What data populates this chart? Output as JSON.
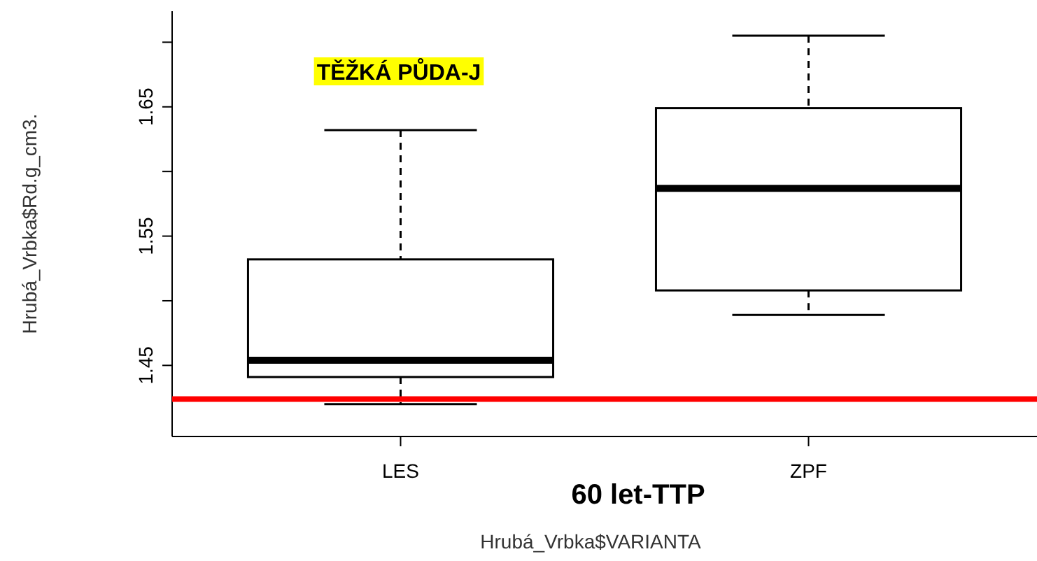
{
  "chart_data": {
    "type": "box",
    "categories": [
      "LES",
      "ZPF"
    ],
    "boxes": [
      {
        "low": 1.42,
        "q1": 1.441,
        "median": 1.454,
        "q3": 1.532,
        "high": 1.632
      },
      {
        "low": 1.489,
        "q1": 1.508,
        "median": 1.587,
        "q3": 1.649,
        "high": 1.705
      }
    ],
    "ylim": [
      1.395,
      1.724
    ],
    "yticks": [
      1.45,
      {
        "value": 1.5,
        "label": null
      },
      1.55,
      {
        "value": 1.6,
        "label": null
      },
      1.65,
      {
        "value": 1.7,
        "label": null
      }
    ],
    "ylabel": "Hrubá_Vrbka$Rd.g_cm3.",
    "xlabel": "Hrubá_Vrbka$VARIANTA",
    "annotations": [
      "TĚŽKÁ PŮDA-J",
      "60 let-TTP"
    ],
    "ref_lines": [
      {
        "axis": "y",
        "value": 1.424,
        "color": "#ff0000"
      }
    ]
  }
}
